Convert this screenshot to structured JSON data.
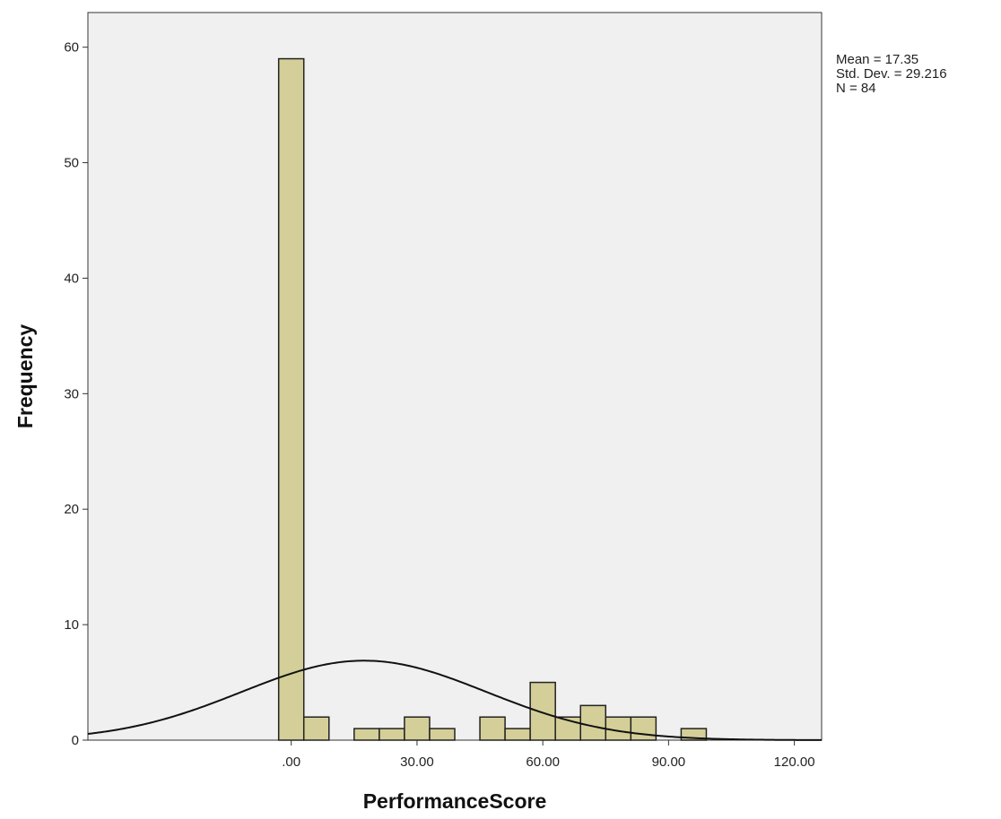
{
  "chart_data": {
    "type": "bar",
    "xlabel": "PerformanceScore",
    "ylabel": "Frequency",
    "xlim": [
      -48.5,
      126.5
    ],
    "ylim": [
      0,
      63
    ],
    "x_ticks": [
      0,
      30,
      60,
      90,
      120
    ],
    "x_tick_labels": [
      ".00",
      "30.00",
      "60.00",
      "90.00",
      "120.00"
    ],
    "y_ticks": [
      0,
      10,
      20,
      30,
      40,
      50,
      60
    ],
    "y_tick_labels": [
      "0",
      "10",
      "20",
      "30",
      "40",
      "50",
      "60"
    ],
    "bin_width": 6,
    "bins": [
      {
        "start": -3,
        "end": 3,
        "count": 59
      },
      {
        "start": 3,
        "end": 9,
        "count": 2
      },
      {
        "start": 15,
        "end": 21,
        "count": 1
      },
      {
        "start": 21,
        "end": 27,
        "count": 1
      },
      {
        "start": 27,
        "end": 33,
        "count": 2
      },
      {
        "start": 33,
        "end": 39,
        "count": 1
      },
      {
        "start": 45,
        "end": 51,
        "count": 2
      },
      {
        "start": 51,
        "end": 57,
        "count": 1
      },
      {
        "start": 57,
        "end": 63,
        "count": 5
      },
      {
        "start": 63,
        "end": 69,
        "count": 2
      },
      {
        "start": 69,
        "end": 75,
        "count": 3
      },
      {
        "start": 75,
        "end": 81,
        "count": 2
      },
      {
        "start": 81,
        "end": 87,
        "count": 2
      },
      {
        "start": 93,
        "end": 99,
        "count": 1
      }
    ],
    "normal_curve": {
      "mean": 17.35,
      "std_dev": 29.216,
      "n": 84
    },
    "grid": false,
    "colors": {
      "bar_fill": "#d4cf98",
      "bar_stroke": "#222222",
      "plot_bg": "#f0f0f0",
      "curve": "#111111"
    }
  },
  "stats": {
    "mean": "Mean = 17.35",
    "std_dev": "Std. Dev. = 29.216",
    "n": "N = 84"
  }
}
